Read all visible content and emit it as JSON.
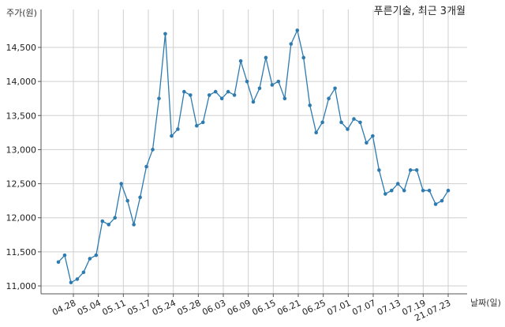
{
  "chart_data": {
    "type": "line",
    "title": "푸른기술, 최근 3개월",
    "ylabel": "주가(원)",
    "xlabel": "날짜(일)",
    "ylim": [
      10950,
      14900
    ],
    "grid": true,
    "color": "#2e7bb0",
    "x_ticks": [
      "04.28",
      "05.04",
      "05.11",
      "05.17",
      "05.24",
      "05.28",
      "06.03",
      "06.09",
      "06.15",
      "06.21",
      "06.25",
      "07.01",
      "07.07",
      "07.13",
      "07.19",
      "21.07.23"
    ],
    "y_ticks": [
      11000,
      11500,
      12000,
      12500,
      13000,
      13500,
      14000,
      14500
    ],
    "y_tick_labels": [
      "11,000",
      "11,500",
      "12,000",
      "12,500",
      "13,000",
      "13,500",
      "14,000",
      "14,500"
    ],
    "values": [
      11350,
      11450,
      11050,
      11100,
      11200,
      11400,
      11450,
      11950,
      11900,
      12000,
      12500,
      12250,
      11900,
      12300,
      12750,
      13000,
      13750,
      14700,
      13200,
      13300,
      13850,
      13800,
      13350,
      13400,
      13800,
      13850,
      13750,
      13850,
      13800,
      14300,
      14000,
      13700,
      13900,
      14350,
      13950,
      14000,
      13750,
      14550,
      14750,
      14350,
      13650,
      13250,
      13400,
      13750,
      13900,
      13400,
      13300,
      13450,
      13400,
      13100,
      13200,
      12700,
      12350,
      12400,
      12500,
      12400,
      12700,
      12700,
      12400,
      12400,
      12200,
      12250,
      12400
    ]
  }
}
